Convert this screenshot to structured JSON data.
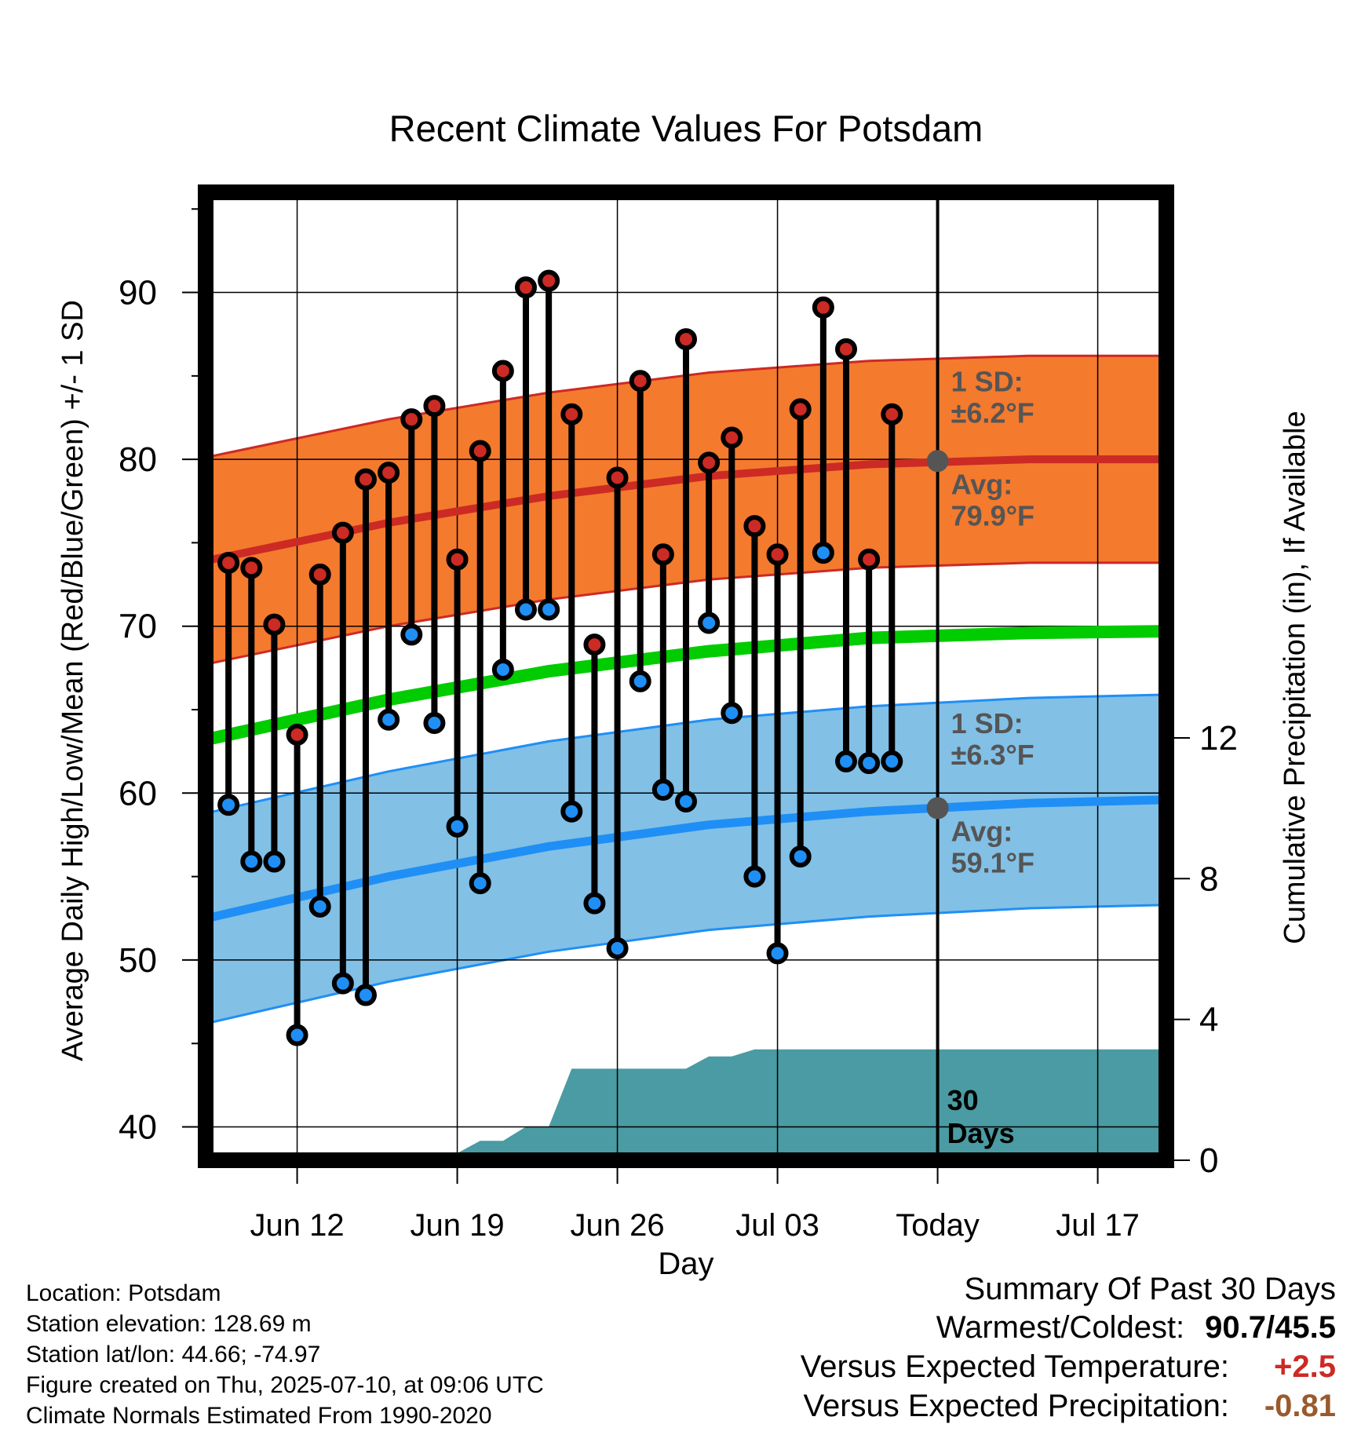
{
  "chart_data": {
    "type": "line",
    "title": "Recent Climate Values For Potsdam",
    "xlabel": "Day",
    "ylabel": "Average Daily High/Low/Mean (Red/Blue/Green) +/- 1 SD",
    "ylabel_right": "Cumulative Precipitation (in), If Available",
    "x_ticks": [
      "Jun 12",
      "Jun 19",
      "Jun 26",
      "Jul 03",
      "Today",
      "Jul 17"
    ],
    "y_ticks": [
      40,
      50,
      60,
      70,
      80,
      90
    ],
    "y_ticks_right": [
      0,
      4,
      8,
      12
    ],
    "ylim": [
      38,
      96
    ],
    "ylim_right": [
      0,
      27.5
    ],
    "xlim": [
      "2025-06-08",
      "2025-07-20"
    ],
    "grid": true,
    "today": "2025-07-10",
    "today_label_line1": "30",
    "today_label_line2": "Days",
    "colors": {
      "high": "#cc2a24",
      "high_band": "#f47a2e",
      "low": "#1f8ff5",
      "low_band": "#82c0e6",
      "mean": "#00cc00",
      "precip": "#4a9ba3",
      "annotation": "#555555"
    },
    "normal_days": [
      "2025-06-09",
      "2025-06-16",
      "2025-06-23",
      "2025-06-30",
      "2025-07-07",
      "2025-07-14",
      "2025-07-20"
    ],
    "normal_high": [
      74.2,
      76.2,
      77.8,
      79.0,
      79.7,
      80.0,
      80.0
    ],
    "normal_high_sd": 6.2,
    "normal_low": [
      52.8,
      55.0,
      56.8,
      58.1,
      58.9,
      59.4,
      59.6
    ],
    "normal_low_sd": 6.3,
    "normal_mean": [
      63.5,
      65.6,
      67.3,
      68.5,
      69.3,
      69.6,
      69.7
    ],
    "annotations": {
      "high_sd_line1": "1 SD:",
      "high_sd_line2": "±6.2°F",
      "high_avg_line1": "Avg:",
      "high_avg_line2": "79.9°F",
      "low_sd_line1": "1 SD:",
      "low_sd_line2": "±6.3°F",
      "low_avg_line1": "Avg:",
      "low_avg_line2": "59.1°F",
      "high_avg_value": 79.9,
      "low_avg_value": 59.1
    },
    "daily": {
      "dates": [
        "2025-06-09",
        "2025-06-10",
        "2025-06-11",
        "2025-06-12",
        "2025-06-13",
        "2025-06-14",
        "2025-06-15",
        "2025-06-16",
        "2025-06-17",
        "2025-06-18",
        "2025-06-19",
        "2025-06-20",
        "2025-06-21",
        "2025-06-22",
        "2025-06-23",
        "2025-06-24",
        "2025-06-25",
        "2025-06-26",
        "2025-06-27",
        "2025-06-28",
        "2025-06-29",
        "2025-06-30",
        "2025-07-01",
        "2025-07-02",
        "2025-07-03",
        "2025-07-04",
        "2025-07-05",
        "2025-07-06",
        "2025-07-07",
        "2025-07-08",
        "2025-07-09"
      ],
      "high": [
        73.8,
        73.5,
        70.1,
        63.5,
        73.1,
        75.6,
        78.8,
        79.2,
        82.4,
        83.2,
        74.0,
        80.5,
        85.3,
        90.3,
        90.7,
        82.7,
        68.9,
        78.9,
        84.7,
        74.3,
        87.2,
        79.8,
        81.3,
        76.0,
        74.3,
        83.0,
        89.1,
        86.6,
        74.0,
        82.7,
        null
      ],
      "low": [
        59.3,
        55.9,
        55.9,
        45.5,
        53.2,
        48.6,
        47.9,
        64.4,
        69.5,
        64.2,
        58.0,
        54.6,
        67.4,
        71.0,
        71.0,
        58.9,
        53.4,
        50.7,
        66.7,
        60.2,
        59.5,
        70.2,
        64.8,
        55.0,
        50.4,
        56.2,
        74.4,
        61.9,
        61.8,
        61.9,
        null
      ]
    },
    "precip_cumulative": {
      "dates": [
        "2025-06-08",
        "2025-06-13",
        "2025-06-18",
        "2025-06-19",
        "2025-06-20",
        "2025-06-21",
        "2025-06-22",
        "2025-06-23",
        "2025-06-24",
        "2025-06-29",
        "2025-06-30",
        "2025-07-01",
        "2025-07-02",
        "2025-07-03",
        "2025-07-20"
      ],
      "values": [
        0.0,
        0.05,
        0.05,
        0.2,
        0.55,
        0.55,
        0.95,
        0.95,
        2.6,
        2.6,
        2.95,
        2.95,
        3.15,
        3.15,
        3.15
      ]
    }
  },
  "footer": {
    "location": "Location: Potsdam",
    "elevation": "Station elevation: 128.69 m",
    "latlon": "Station lat/lon: 44.66; -74.97",
    "created": "Figure created on Thu, 2025-07-10, at 09:06 UTC",
    "normals": "Climate Normals Estimated From 1990-2020"
  },
  "summary": {
    "heading": "Summary Of Past 30 Days",
    "warmest_coldest_label": "Warmest/Coldest:",
    "warmest_coldest_value": "90.7/45.5",
    "temp_label": "Versus Expected Temperature:",
    "temp_value": "+2.5",
    "temp_color": "#cc2a24",
    "precip_label": "Versus Expected Precipitation:",
    "precip_value": "-0.81",
    "precip_color": "#9a5a2c"
  }
}
